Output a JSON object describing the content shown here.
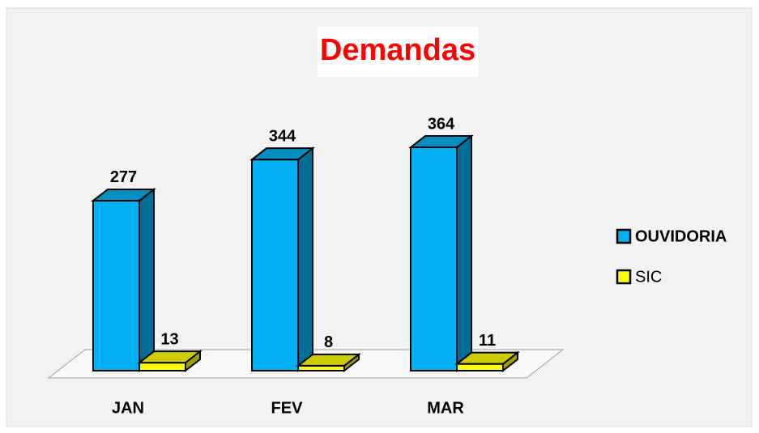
{
  "chart_data": {
    "type": "bar3d",
    "title": "Demandas",
    "categories": [
      "JAN",
      "FEV",
      "MAR"
    ],
    "series": [
      {
        "name": "OUVIDORIA",
        "color": "#00b0f0",
        "values": [
          277,
          344,
          364
        ]
      },
      {
        "name": "SIC",
        "color": "#ffff00",
        "values": [
          13,
          8,
          11
        ]
      }
    ],
    "legend": "right"
  }
}
